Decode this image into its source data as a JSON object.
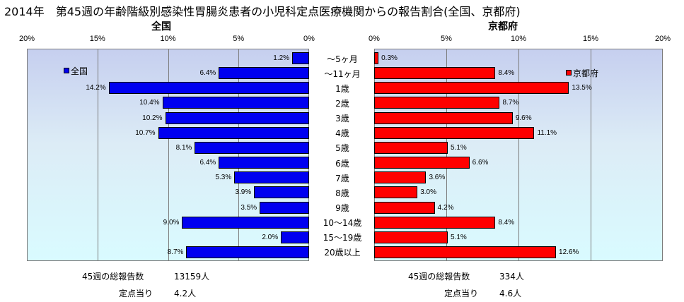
{
  "title": "2014年　第45週の年齢階級別感染性胃腸炎患者の小児科定点医療機関からの報告割合(全国、京都府)",
  "chart_data": [
    {
      "type": "bar",
      "orientation": "horizontal",
      "direction": "right-to-left",
      "title": "全国",
      "xlim": [
        0,
        20
      ],
      "x_ticks": [
        "20%",
        "15%",
        "10%",
        "5%",
        "0%"
      ],
      "categories": [
        "～5ヶ月",
        "～11ヶ月",
        "1歳",
        "2歳",
        "3歳",
        "4歳",
        "5歳",
        "6歳",
        "7歳",
        "8歳",
        "9歳",
        "10～14歳",
        "15～19歳",
        "20歳以上"
      ],
      "series": [
        {
          "name": "全国",
          "color": "#0000f0",
          "values": [
            1.2,
            6.4,
            14.2,
            10.4,
            10.2,
            10.7,
            8.1,
            6.4,
            5.3,
            3.9,
            3.5,
            9.0,
            2.0,
            8.7
          ],
          "labels": [
            "1.2%",
            "6.4%",
            "14.2%",
            "10.4%",
            "10.2%",
            "10.7%",
            "8.1%",
            "6.4%",
            "5.3%",
            "3.9%",
            "3.5%",
            "9.0%",
            "2.0%",
            "8.7%"
          ]
        }
      ],
      "grid": true,
      "legend": "top-left"
    },
    {
      "type": "bar",
      "orientation": "horizontal",
      "direction": "left-to-right",
      "title": "京都府",
      "xlim": [
        0,
        20
      ],
      "x_ticks": [
        "0%",
        "5%",
        "10%",
        "15%",
        "20%"
      ],
      "categories": [
        "～5ヶ月",
        "～11ヶ月",
        "1歳",
        "2歳",
        "3歳",
        "4歳",
        "5歳",
        "6歳",
        "7歳",
        "8歳",
        "9歳",
        "10～14歳",
        "15～19歳",
        "20歳以上"
      ],
      "series": [
        {
          "name": "京都府",
          "color": "#ff0000",
          "values": [
            0.3,
            8.4,
            13.5,
            8.7,
            9.6,
            11.1,
            5.1,
            6.6,
            3.6,
            3.0,
            4.2,
            8.4,
            5.1,
            12.6
          ],
          "labels": [
            "0.3%",
            "8.4%",
            "13.5%",
            "8.7%",
            "9.6%",
            "11.1%",
            "5.1%",
            "6.6%",
            "3.6%",
            "3.0%",
            "4.2%",
            "8.4%",
            "5.1%",
            "12.6%"
          ]
        }
      ],
      "grid": true,
      "legend": "top-right"
    }
  ],
  "summary": {
    "national": {
      "total_label": "45週の総報告数",
      "total_value": "13159人",
      "per_label": "定点当り",
      "per_value": "4.2人"
    },
    "kyoto": {
      "total_label": "45週の総報告数",
      "total_value": "334人",
      "per_label": "定点当り",
      "per_value": "4.6人"
    }
  }
}
